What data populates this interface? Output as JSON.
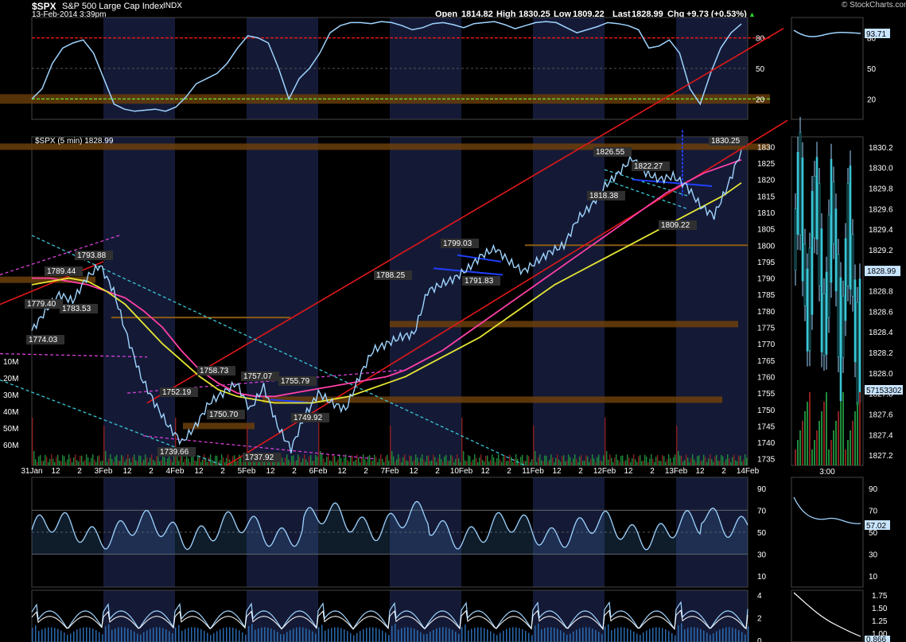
{
  "header": {
    "symbol": "$SPX",
    "name": "S&P 500 Large Cap Index",
    "exchange": "INDX",
    "timestamp": "13-Feb-2014 3:39pm",
    "open_label": "Open",
    "open": "1814.82",
    "high_label": "High",
    "high": "1830.25",
    "low_label": "Low",
    "low": "1809.22",
    "last_label": "Last",
    "last": "1828.99",
    "chg_label": "Chg",
    "chg": "+9.73 (+0.53%)",
    "watermark": "© StockCharts.com"
  },
  "colors": {
    "background": "#000000",
    "day_shade": "#141a36",
    "price": "#9fd4ff",
    "ma_fast": "#ff3fa6",
    "ma_slow": "#e5e534",
    "channel": "#e01818",
    "support_zone": "#6b3f0a",
    "cyan_trend": "#39c6d6",
    "magenta_trend": "#d63fd6",
    "blue_trend": "#2040ff",
    "volume_up": "#1f8a3a",
    "volume_down": "#8a1f1f"
  },
  "chart_data": [
    {
      "type": "line",
      "panel": "rsi-top",
      "title": "",
      "ylim": [
        0,
        100
      ],
      "yticks": [
        "80",
        "50",
        "20"
      ],
      "current_value": "93.71",
      "series": [
        {
          "name": "",
          "x": [
            0,
            3,
            6,
            9,
            12,
            15,
            18,
            21,
            24,
            27,
            30,
            33,
            36,
            39,
            42,
            45,
            48,
            51,
            54,
            57,
            60,
            63,
            66,
            69,
            72,
            75,
            78,
            81,
            84,
            87,
            90,
            93,
            96,
            99,
            102,
            105,
            108,
            111,
            114,
            117,
            120,
            123,
            126,
            129,
            132,
            135,
            138,
            141,
            144,
            147,
            150,
            153,
            156,
            159,
            162,
            165,
            168,
            171,
            174,
            177,
            180,
            183,
            186,
            189,
            192,
            195,
            198,
            201,
            204,
            207
          ],
          "values": [
            20,
            30,
            55,
            70,
            75,
            78,
            65,
            40,
            15,
            10,
            8,
            9,
            10,
            8,
            12,
            22,
            35,
            40,
            45,
            55,
            70,
            82,
            80,
            75,
            50,
            20,
            40,
            50,
            65,
            85,
            92,
            95,
            95,
            94,
            96,
            95,
            92,
            88,
            90,
            94,
            95,
            93,
            90,
            94,
            95,
            96,
            93,
            89,
            92,
            95,
            96,
            95,
            90,
            85,
            88,
            91,
            95,
            94,
            92,
            88,
            70,
            72,
            78,
            65,
            30,
            15,
            45,
            70,
            85,
            93.7
          ]
        }
      ]
    },
    {
      "type": "line",
      "panel": "price-main",
      "title": "$SPX (5 min) 1828.99",
      "ylim": [
        1733,
        1833
      ],
      "yticks": [
        "1830",
        "1825",
        "1820",
        "1815",
        "1810",
        "1805",
        "1800",
        "1795",
        "1790",
        "1785",
        "1780",
        "1775",
        "1770",
        "1765",
        "1760",
        "1755",
        "1750",
        "1745",
        "1740",
        "1735"
      ],
      "xticks": [
        "31Jan",
        "12",
        "2",
        "3Feb",
        "12",
        "2",
        "4Feb",
        "12",
        "2",
        "5Feb",
        "12",
        "2",
        "6Feb",
        "12",
        "2",
        "7Feb",
        "12",
        "2",
        "10Feb",
        "12",
        "2",
        "11Feb",
        "12",
        "2",
        "12Feb",
        "12",
        "2",
        "13Feb",
        "12",
        "2",
        "14Feb"
      ],
      "series": [
        {
          "name": "",
          "x": [
            0,
            4,
            8,
            12,
            16,
            20,
            24,
            28,
            32,
            36,
            40,
            44,
            48,
            52,
            56,
            60,
            64,
            68,
            72,
            76,
            80,
            84,
            88,
            92,
            96,
            100,
            104,
            108,
            112,
            116,
            120,
            124,
            128,
            132,
            136,
            140,
            144,
            148,
            152,
            156,
            160,
            164,
            168,
            172,
            176,
            180,
            184,
            188,
            192,
            196,
            200,
            204,
            208
          ],
          "values": [
            1774,
            1780,
            1785,
            1783,
            1790,
            1793.9,
            1786,
            1772,
            1760,
            1752,
            1745,
            1740,
            1745,
            1752,
            1755,
            1758,
            1750,
            1757,
            1745,
            1738,
            1748,
            1755,
            1752,
            1750,
            1760,
            1768,
            1770,
            1772,
            1773,
            1786,
            1788,
            1790,
            1793,
            1797,
            1799,
            1795,
            1792,
            1795,
            1798,
            1800,
            1808,
            1812,
            1818,
            1822,
            1826.5,
            1822,
            1820,
            1821,
            1818,
            1812,
            1809,
            1818,
            1829
          ]
        },
        {
          "name": "",
          "values": [
            1790,
            1790,
            1789,
            1788,
            1786,
            1784,
            1780,
            1775,
            1768,
            1762,
            1758,
            1755,
            1754,
            1754,
            1755,
            1756,
            1757,
            1758,
            1759,
            1760,
            1762,
            1765,
            1768,
            1772,
            1776,
            1780,
            1784,
            1788,
            1792,
            1796,
            1800,
            1804,
            1808,
            1812,
            1816,
            1819,
            1822,
            1824,
            1826
          ]
        },
        {
          "name": "",
          "values": [
            1788,
            1789,
            1790,
            1789,
            1786,
            1782,
            1776,
            1770,
            1765,
            1760,
            1756,
            1754,
            1753,
            1752,
            1752,
            1752,
            1753,
            1754,
            1756,
            1758,
            1760,
            1763,
            1766,
            1769,
            1772,
            1776,
            1780,
            1784,
            1788,
            1791,
            1794,
            1797,
            1800,
            1803,
            1806,
            1809,
            1812,
            1815,
            1819
          ]
        }
      ],
      "annotations": [
        "1793.88",
        "1789.44",
        "1779.40",
        "1783.53",
        "1774.03",
        "1758.73",
        "1757.07",
        "1755.79",
        "1752.19",
        "1750.70",
        "1749.92",
        "1739.66",
        "1737.92",
        "1788.25",
        "1799.03",
        "1791.83",
        "1826.55",
        "1822.27",
        "1818.38",
        "1809.22",
        "1830.25"
      ]
    },
    {
      "type": "bar",
      "panel": "volume",
      "ylim": [
        0,
        70
      ],
      "yticks": [
        "60M",
        "50M",
        "40M",
        "30M",
        "20M",
        "10M"
      ]
    },
    {
      "type": "line",
      "panel": "rsi-lower",
      "ylim": [
        0,
        100
      ],
      "yticks": [
        "90",
        "70",
        "50",
        "30",
        "10"
      ],
      "current_value": "57.02"
    },
    {
      "type": "line",
      "panel": "bottom-indicator",
      "yticks": [
        "4",
        "2",
        "0"
      ]
    },
    {
      "type": "bar",
      "panel": "side-daily",
      "ylim": [
        1827.1,
        1830.3
      ],
      "yticks": [
        "1830.2",
        "1830.0",
        "1829.8",
        "1829.6",
        "1829.4",
        "1829.2",
        "1829.0",
        "1828.8",
        "1828.6",
        "1828.4",
        "1828.2",
        "1828.0",
        "1827.8",
        "1827.6",
        "1827.4",
        "1827.2"
      ],
      "current_value": "1828.99",
      "volume_label": "57153302",
      "xticks": [
        "3:00"
      ],
      "rsi_top_value": "93.71",
      "rsi_top_ticks": [
        "80",
        "50",
        "20"
      ],
      "rsi_low_value": "57.02",
      "rsi_low_ticks": [
        "90",
        "70",
        "50",
        "30",
        "10"
      ],
      "bottom_ticks": [
        "1.75",
        "1.50",
        "1.25",
        "1.00"
      ],
      "bottom_value": "0.866"
    }
  ]
}
